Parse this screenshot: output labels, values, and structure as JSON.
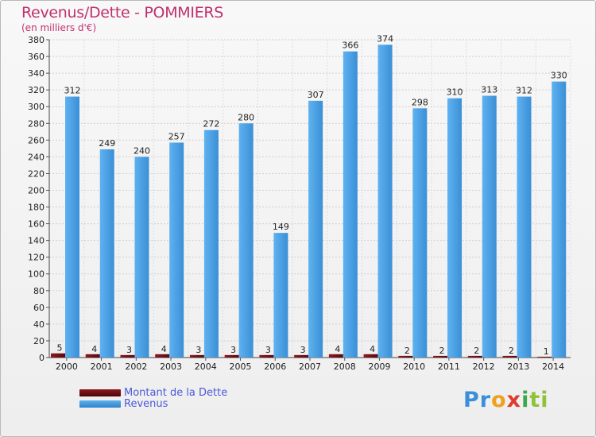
{
  "title": "Revenus/Dette - POMMIERS",
  "subtitle": "(en milliers d'€)",
  "chart_data": {
    "type": "bar",
    "categories": [
      "2000",
      "2001",
      "2002",
      "2003",
      "2004",
      "2005",
      "2006",
      "2007",
      "2008",
      "2009",
      "2010",
      "2011",
      "2012",
      "2013",
      "2014"
    ],
    "series": [
      {
        "name": "Montant de la Dette",
        "color": "#6b0d12",
        "values": [
          5,
          4,
          3,
          4,
          3,
          3,
          3,
          3,
          4,
          4,
          2,
          2,
          2,
          2,
          1
        ]
      },
      {
        "name": "Revenus",
        "color": "#4a9fe0",
        "values": [
          312,
          249,
          240,
          257,
          272,
          280,
          149,
          307,
          366,
          374,
          298,
          310,
          313,
          312,
          330
        ]
      }
    ],
    "ylim": [
      0,
      380
    ],
    "ytick_step": 20,
    "grid": true,
    "xlabel": "",
    "ylabel": ""
  },
  "legend": {
    "debt_label": "Montant de la Dette",
    "revenue_label": "Revenus"
  },
  "logo": {
    "text_parts": [
      "Pr",
      "o",
      "x",
      "i",
      "ti"
    ],
    "colors": [
      "#3a8fd8",
      "#f0a020",
      "#e23a2e",
      "#3aa84a",
      "#8fc23a"
    ]
  }
}
